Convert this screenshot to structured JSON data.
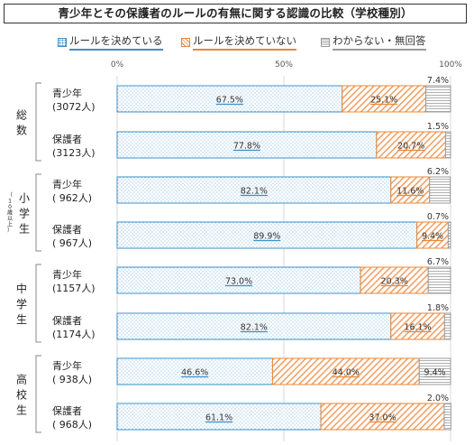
{
  "title": "青少年とその保護者のルールの有無に関する認識の比較（学校種別）",
  "legend": [
    {
      "label": "ルールを決めている",
      "color": "#3e8fc7"
    },
    {
      "label": "ルールを決めていない",
      "color": "#e8873a"
    },
    {
      "label": "わからない・無回答",
      "color": "#9a9a9a"
    }
  ],
  "chart_data": {
    "type": "bar",
    "stacked": true,
    "orientation": "horizontal",
    "axis_ticks": [
      "0%",
      "50%",
      "100%"
    ],
    "xlim": [
      0,
      100
    ],
    "groups": [
      {
        "label": "総数",
        "sublabel": ""
      },
      {
        "label": "小学生",
        "sublabel": "（10歳以上）"
      },
      {
        "label": "中学生",
        "sublabel": ""
      },
      {
        "label": "高校生",
        "sublabel": ""
      }
    ],
    "rows": [
      {
        "group": 0,
        "label1": "青少年",
        "label2": "(3072人)",
        "values": [
          67.5,
          25.1,
          7.4
        ],
        "labels": [
          "67.5%",
          "25.1%",
          "7.4%"
        ]
      },
      {
        "group": 0,
        "label1": "保護者",
        "label2": "(3123人)",
        "values": [
          77.8,
          20.7,
          1.5
        ],
        "labels": [
          "77.8%",
          "20.7%",
          "1.5%"
        ]
      },
      {
        "group": 1,
        "label1": "青少年",
        "label2": "( 962人)",
        "values": [
          82.1,
          11.6,
          6.2
        ],
        "labels": [
          "82.1%",
          "11.6%",
          "6.2%"
        ]
      },
      {
        "group": 1,
        "label1": "保護者",
        "label2": "( 967人)",
        "values": [
          89.9,
          9.4,
          0.7
        ],
        "labels": [
          "89.9%",
          "9.4%",
          "0.7%"
        ]
      },
      {
        "group": 2,
        "label1": "青少年",
        "label2": "(1157人)",
        "values": [
          73.0,
          20.3,
          6.7
        ],
        "labels": [
          "73.0%",
          "20.3%",
          "6.7%"
        ]
      },
      {
        "group": 2,
        "label1": "保護者",
        "label2": "(1174人)",
        "values": [
          82.1,
          16.1,
          1.8
        ],
        "labels": [
          "82.1%",
          "16.1%",
          "1.8%"
        ]
      },
      {
        "group": 3,
        "label1": "青少年",
        "label2": "( 938人)",
        "values": [
          46.6,
          44.0,
          9.4
        ],
        "labels": [
          "46.6%",
          "44.0%",
          "9.4%"
        ]
      },
      {
        "group": 3,
        "label1": "保護者",
        "label2": "( 968人)",
        "values": [
          61.1,
          37.0,
          2.0
        ],
        "labels": [
          "61.1%",
          "37.0%",
          "2.0%"
        ]
      }
    ]
  }
}
